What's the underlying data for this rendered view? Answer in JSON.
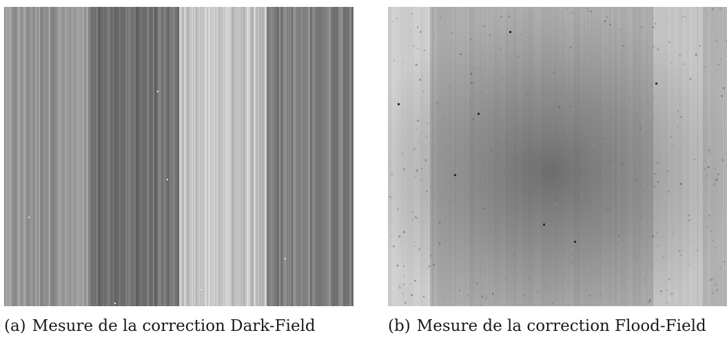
{
  "figures": [
    {
      "tag": "(a)",
      "caption": "Mesure de la correction Dark-Field",
      "image": "dark-field-correction-map"
    },
    {
      "tag": "(b)",
      "caption": "Mesure de la correction Flood-Field",
      "image": "flood-field-correction-map"
    }
  ]
}
